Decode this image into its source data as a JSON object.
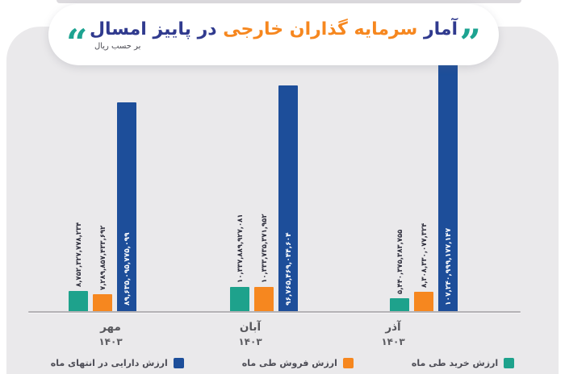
{
  "title": {
    "pre": "آمار",
    "highlight": "سرمایه گذاران خارجی",
    "post": "در پاییز امسال",
    "subtitle": "بر حسب ریال",
    "open_quote": "“",
    "close_quote": "”"
  },
  "colors": {
    "teal": "#1ea28c",
    "orange": "#f6871f",
    "blue": "#1d4e9a",
    "title_navy": "#303a8e",
    "title_orange": "#f6871f",
    "card_bg": "#eae9eb",
    "axis": "#b4b2b5"
  },
  "chart_data": {
    "type": "bar",
    "unit": "ریال",
    "grid": false,
    "legend_position": "bottom",
    "categories": [
      {
        "month": "مهر",
        "year": "۱۴۰۳"
      },
      {
        "month": "آبان",
        "year": "۱۴۰۳"
      },
      {
        "month": "آذر",
        "year": "۱۴۰۳"
      }
    ],
    "ylim": [
      0,
      110000000000000
    ],
    "series": [
      {
        "name": "ارزش خرید طی ماه",
        "color_key": "teal",
        "values": [
          8752327778234,
          10337889927081,
          5440375383755
        ],
        "labels": [
          "۸,۷۵۲,۳۲۷,۷۷۸,۲۳۴",
          "۱۰,۳۳۷,۸۸۹,۹۲۷,۰۸۱",
          "۵,۴۴۰,۳۷۵,۳۸۳,۷۵۵"
        ]
      },
      {
        "name": "ارزش فروش طی ماه",
        "color_key": "orange",
        "values": [
          7289857433692,
          10333735371952,
          8308330077324
        ],
        "labels": [
          "۷,۲۸۹,۸۵۷,۴۳۳,۶۹۲",
          "۱۰,۳۳۳,۷۳۵,۳۷۱,۹۵۲",
          "۸,۳۰۸,۳۳۰,۰۷۷,۳۲۴"
        ]
      },
      {
        "name": "ارزش دارایی در انتهای ماه",
        "color_key": "blue",
        "values": [
          89635095775099,
          96765469044604,
          107240999177147
        ],
        "labels": [
          "۸۹,۶۳۵,۰۹۵,۷۷۵,۰۹۹",
          "۹۶,۷۶۵,۴۶۹,۰۴۴,۶۰۴",
          "۱۰۷,۲۴۰,۹۹۹,۱۷۷,۱۴۷"
        ]
      }
    ]
  },
  "legend": {
    "items": [
      {
        "label": "ارزش دارایی در انتهای ماه",
        "color_key": "blue"
      },
      {
        "label": "ارزش فروش طی ماه",
        "color_key": "orange"
      },
      {
        "label": "ارزش خرید طی ماه",
        "color_key": "teal"
      }
    ]
  }
}
